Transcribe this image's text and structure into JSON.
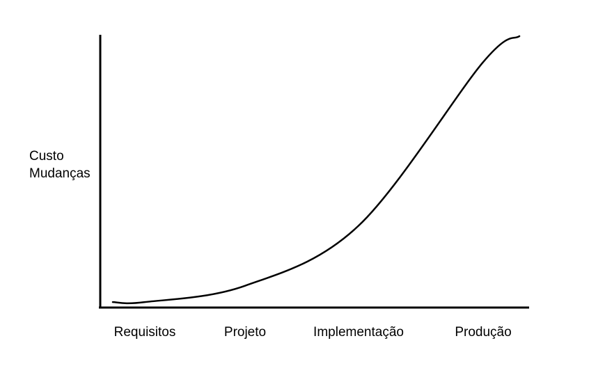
{
  "chart_data": {
    "type": "line",
    "title": "",
    "xlabel": "",
    "ylabel_lines": [
      "Custo",
      "Mudanças"
    ],
    "categories": [
      "Requisitos",
      "Projeto",
      "Implementação",
      "Produção"
    ],
    "series": [
      {
        "values": [
          0.02,
          0.08,
          0.3,
          0.9
        ]
      }
    ],
    "ylim": [
      0,
      1
    ],
    "grid": false,
    "legend": "none",
    "colors": {
      "axis": "#000000",
      "curve": "#000000"
    }
  }
}
